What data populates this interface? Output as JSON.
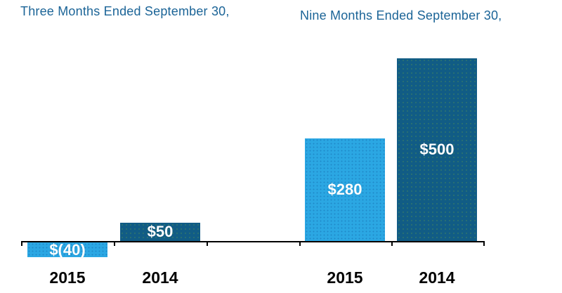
{
  "chart_data": {
    "type": "bar",
    "title": "",
    "groups": [
      {
        "title": "Three Months Ended September 30,",
        "categories": [
          "2015",
          "2014"
        ],
        "values": [
          -40,
          50
        ],
        "value_labels": [
          "$(40)",
          "$50"
        ]
      },
      {
        "title": "Nine Months Ended September 30,",
        "categories": [
          "2015",
          "2014"
        ],
        "values": [
          280,
          500
        ],
        "value_labels": [
          "$280",
          "$500"
        ]
      }
    ],
    "series_colors": {
      "2015": "#2BA7E3",
      "2014": "#115C85"
    },
    "group_title_color": "#1B6497",
    "value_label_color": "#FFFFFF",
    "axis_color": "#000000",
    "x_label_color": "#000000",
    "ylim": [
      -40,
      500
    ],
    "grid": false,
    "legend": "none",
    "value_labels_position": "inside-center"
  }
}
